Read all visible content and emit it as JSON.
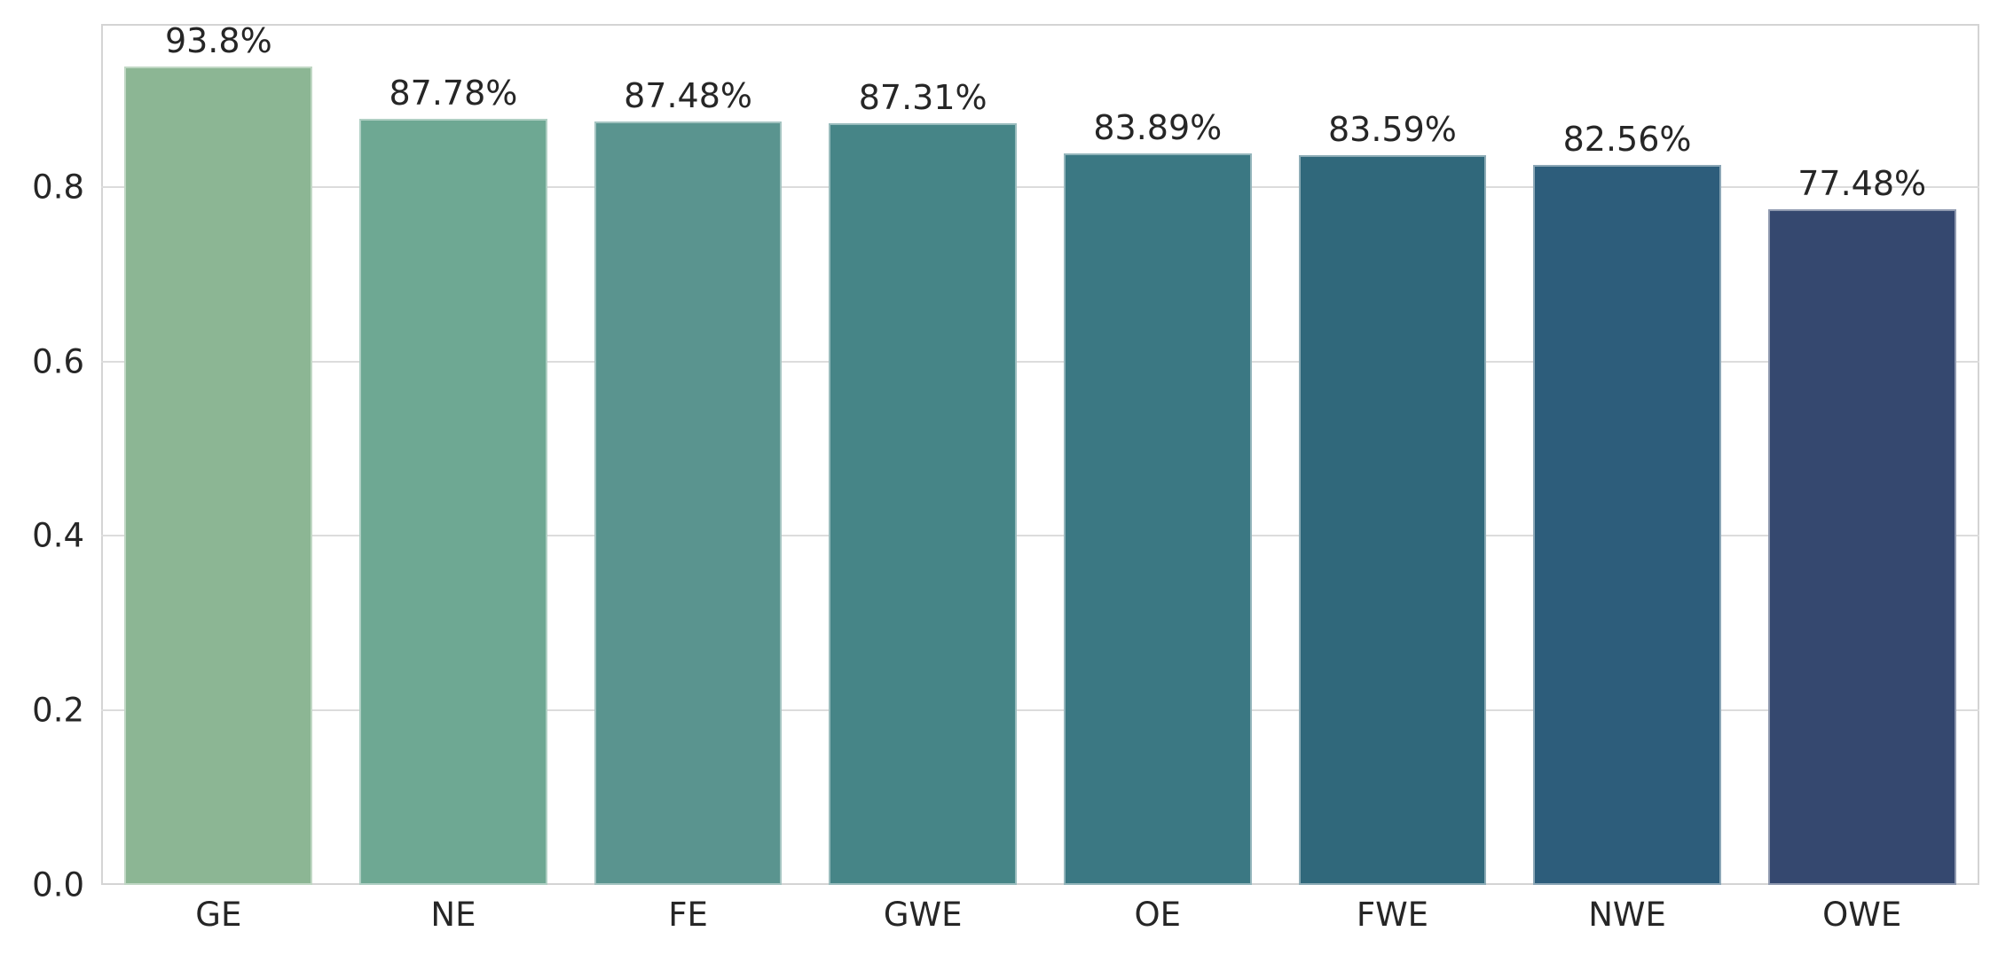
{
  "chart_data": {
    "type": "bar",
    "title": "",
    "xlabel": "",
    "ylabel": "",
    "categories": [
      "GE",
      "NE",
      "FE",
      "GWE",
      "OE",
      "FWE",
      "NWE",
      "OWE"
    ],
    "values": [
      0.938,
      0.8778,
      0.8748,
      0.8731,
      0.8389,
      0.8359,
      0.8256,
      0.7748
    ],
    "bar_labels": [
      "93.8%",
      "87.78%",
      "87.48%",
      "87.31%",
      "83.89%",
      "83.59%",
      "82.56%",
      "77.48%"
    ],
    "bar_colors": [
      "#8cb694",
      "#6ea893",
      "#5a948f",
      "#468587",
      "#3b7883",
      "#30687b",
      "#2d5d7b",
      "#35486f"
    ],
    "ytick_labels": [
      "0.0",
      "0.2",
      "0.4",
      "0.6",
      "0.8"
    ],
    "ytick_values": [
      0.0,
      0.2,
      0.4,
      0.6,
      0.8
    ],
    "ylim": [
      0,
      0.9868
    ],
    "grid": true,
    "legend_position": "none",
    "style": {
      "grid_color": "#dcdcdc",
      "spine_color": "#d4d4d4",
      "text_color": "#262626",
      "background_color": "#ffffff",
      "bar_width_fraction": 0.8
    }
  }
}
